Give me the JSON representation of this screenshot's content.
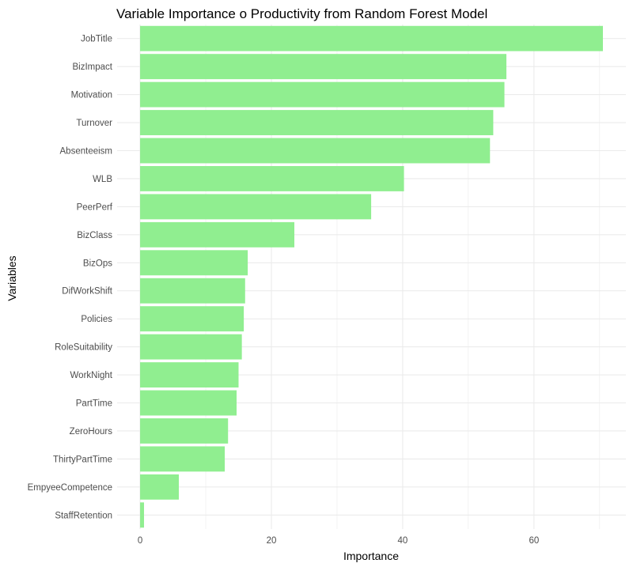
{
  "chart_data": {
    "type": "bar",
    "orientation": "horizontal",
    "title": "Variable Importance o Productivity from Random Forest Model",
    "xlabel": "Importance",
    "ylabel": "Variables",
    "xlim": [
      -3.5,
      74
    ],
    "x_ticks": [
      0,
      20,
      40,
      60
    ],
    "grid": true,
    "bar_color": "#90EE90",
    "grid_color": "#EBEBEB",
    "categories": [
      "JobTitle",
      "BizImpact",
      "Motivation",
      "Turnover",
      "Absenteeism",
      "WLB",
      "PeerPerf",
      "BizClass",
      "BizOps",
      "DifWorkShift",
      "Policies",
      "RoleSuitability",
      "WorkNight",
      "PartTime",
      "ZeroHours",
      "ThirtyPartTime",
      "EmpyeeCompetence",
      "StaffRetention"
    ],
    "values": [
      70.5,
      55.8,
      55.5,
      53.8,
      53.3,
      40.2,
      35.2,
      23.5,
      16.4,
      16.0,
      15.8,
      15.5,
      15.0,
      14.7,
      13.4,
      12.9,
      5.9,
      0.6
    ]
  }
}
